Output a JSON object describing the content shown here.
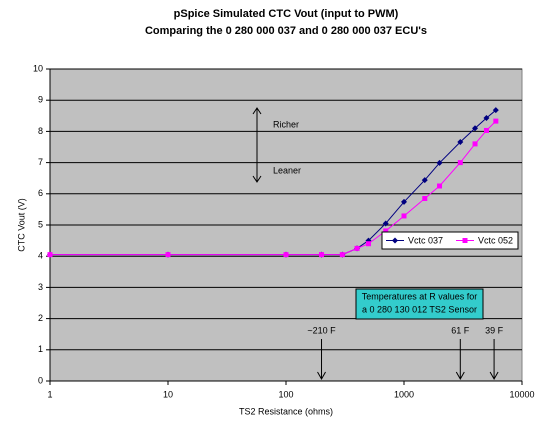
{
  "chart_data": {
    "type": "line",
    "title": "pSpice Simulated CTC Vout (input to PWM)",
    "subtitle": "Comparing the 0 280 000 037 and 0 280 000 037 ECU's",
    "x_label": "TS2 Resistance (ohms)",
    "y_label": "CTC Vout (V)",
    "x_log": true,
    "grid": true,
    "legend": "right",
    "x": [
      1,
      10,
      100,
      200,
      300,
      400,
      500,
      700,
      1000,
      1500,
      2000,
      3000,
      4000,
      5000,
      6000
    ],
    "series": [
      {
        "name": "Vctc 037",
        "color": "#000080",
        "marker": "diamond",
        "values": [
          4.05,
          4.05,
          4.05,
          4.05,
          4.05,
          4.25,
          4.5,
          5.05,
          5.74,
          6.44,
          6.99,
          7.66,
          8.1,
          8.43,
          8.68
        ]
      },
      {
        "name": "Vctc 052",
        "color": "#ff00ff",
        "marker": "square",
        "values": [
          4.05,
          4.05,
          4.05,
          4.05,
          4.05,
          4.25,
          4.4,
          4.81,
          5.29,
          5.85,
          6.25,
          7.0,
          7.6,
          8.03,
          8.33
        ]
      }
    ],
    "xlim": [
      1,
      10000
    ],
    "xticks": [
      1,
      10,
      100,
      1000,
      10000
    ],
    "ylim": [
      0,
      10
    ],
    "yticks": [
      0,
      1,
      2,
      3,
      4,
      5,
      6,
      7,
      8,
      9,
      10
    ],
    "annotations": {
      "richer": "Richer",
      "leaner": "Leaner",
      "box": [
        "Temperatures at R values for",
        "a 0 280 130 012 TS2 Sensor"
      ]
    },
    "markers": [
      {
        "label": "~210 F",
        "x": 200
      },
      {
        "label": "61 F",
        "x": 3000
      },
      {
        "label": "39 F",
        "x": 5800
      }
    ]
  }
}
